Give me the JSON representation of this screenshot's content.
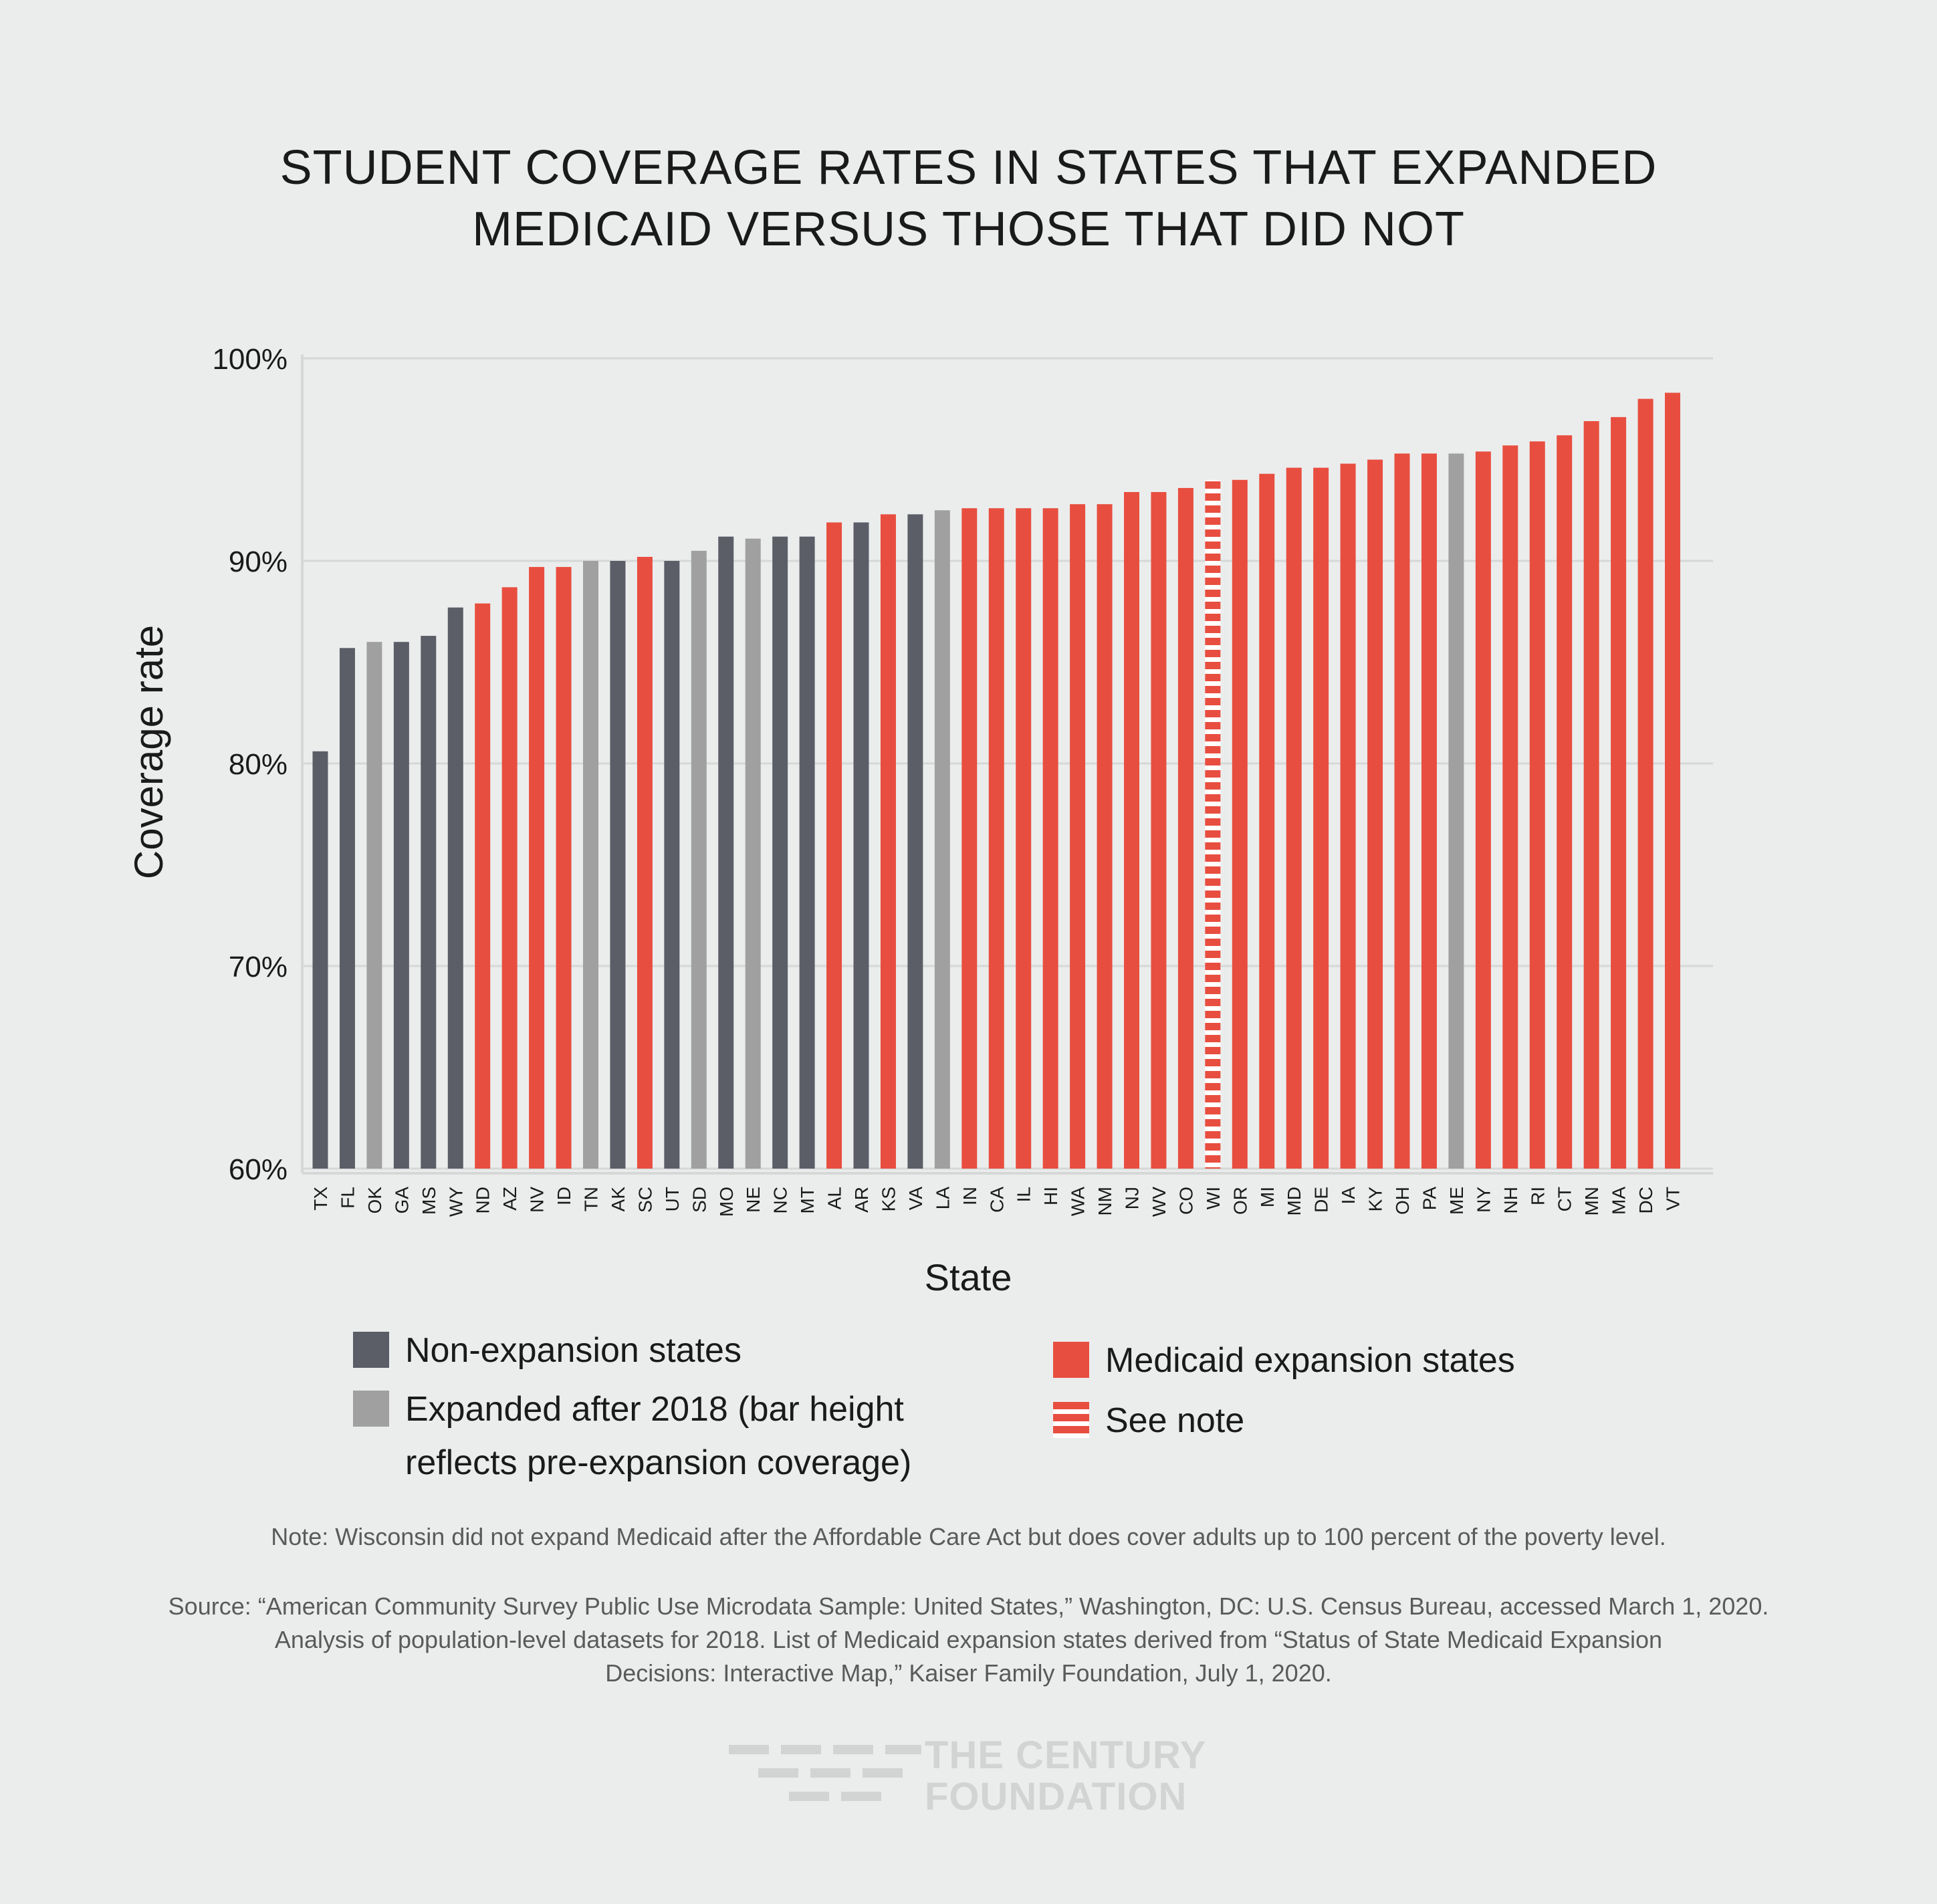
{
  "title_lines": [
    "STUDENT COVERAGE RATES IN STATES THAT EXPANDED",
    "MEDICAID VERSUS THOSE THAT DID NOT"
  ],
  "colors": {
    "non_expansion": "#5b5e67",
    "expanded_after_2018": "#a0a0a0",
    "medicaid_expansion": "#e84e3f",
    "see_note": "#e84e3f"
  },
  "chart_data": {
    "type": "bar",
    "title": "STUDENT COVERAGE RATES IN STATES THAT EXPANDED MEDICAID VERSUS THOSE THAT DID NOT",
    "xlabel": "State",
    "ylabel": "Coverage rate",
    "ylim": [
      60,
      100
    ],
    "yticks": [
      60,
      70,
      80,
      90,
      100
    ],
    "ytick_labels": [
      "60%",
      "70%",
      "80%",
      "90%",
      "100%"
    ],
    "grid": true,
    "legend_placement": "bottom",
    "categories": [
      "TX",
      "FL",
      "OK",
      "GA",
      "MS",
      "WY",
      "ND",
      "AZ",
      "NV",
      "ID",
      "TN",
      "AK",
      "SC",
      "UT",
      "SD",
      "MO",
      "NE",
      "NC",
      "MT",
      "AL",
      "AR",
      "KS",
      "VA",
      "LA",
      "IN",
      "CA",
      "IL",
      "HI",
      "WA",
      "NM",
      "NJ",
      "WV",
      "CO",
      "WI",
      "OR",
      "MI",
      "MD",
      "DE",
      "IA",
      "KY",
      "OH",
      "PA",
      "ME",
      "NY",
      "NH",
      "RI",
      "CT",
      "MN",
      "MA",
      "DC",
      "VT"
    ],
    "values": [
      80.6,
      85.7,
      86.0,
      86.0,
      86.3,
      87.7,
      87.9,
      88.7,
      89.7,
      89.7,
      90.0,
      90.0,
      90.2,
      90.0,
      90.5,
      91.2,
      91.1,
      91.2,
      91.2,
      91.9,
      91.9,
      92.3,
      92.3,
      92.5,
      92.6,
      92.6,
      92.6,
      92.6,
      92.8,
      92.8,
      93.4,
      93.4,
      93.6,
      94.0,
      94.0,
      94.3,
      94.6,
      94.6,
      94.8,
      95.0,
      95.3,
      95.3,
      95.3,
      95.4,
      95.7,
      95.9,
      96.2,
      96.9,
      97.1,
      98.0,
      98.3
    ],
    "groups": [
      "non",
      "non",
      "after",
      "non",
      "non",
      "non",
      "exp",
      "exp",
      "exp",
      "exp",
      "after",
      "non",
      "exp",
      "non",
      "after",
      "non",
      "after",
      "non",
      "non",
      "exp",
      "non",
      "exp",
      "non",
      "after",
      "exp",
      "exp",
      "exp",
      "exp",
      "exp",
      "exp",
      "exp",
      "exp",
      "exp",
      "note",
      "exp",
      "exp",
      "exp",
      "exp",
      "exp",
      "exp",
      "exp",
      "exp",
      "after",
      "exp",
      "exp",
      "exp",
      "exp",
      "exp",
      "exp",
      "exp",
      "exp"
    ],
    "legend": [
      {
        "key": "non",
        "label": "Non-expansion states"
      },
      {
        "key": "after",
        "label": "Expanded after 2018 (bar height reflects pre-expansion coverage)"
      },
      {
        "key": "exp",
        "label": "Medicaid expansion states"
      },
      {
        "key": "note",
        "label": "See note"
      }
    ]
  },
  "legend_text": {
    "non": "Non-expansion states",
    "after_line1": "Expanded after 2018 (bar height",
    "after_line2": "reflects pre-expansion coverage)",
    "exp": "Medicaid expansion states",
    "note": "See note"
  },
  "note": "Note:  Wisconsin did not expand Medicaid after the Affordable Care Act but does cover adults up to 100 percent of the poverty level.",
  "source_lines": [
    "Source:  “American Community Survey Public Use Microdata Sample: United States,” Washington, DC: U.S. Census Bureau, accessed March 1, 2020.",
    "Analysis of population-level datasets for 2018. List of Medicaid expansion states derived from “Status of State Medicaid Expansion",
    "Decisions: Interactive Map,” Kaiser Family Foundation, July 1, 2020."
  ],
  "logo": {
    "line1": "THE CENTURY",
    "line2": "FOUNDATION"
  }
}
